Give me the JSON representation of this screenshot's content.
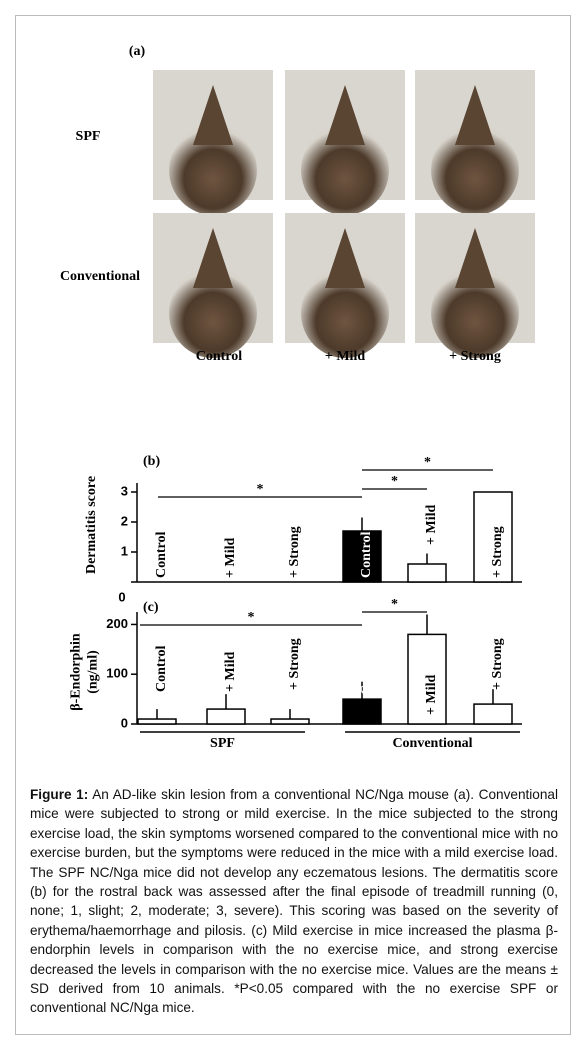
{
  "panel_a": {
    "label": "(a)",
    "rows": [
      "SPF",
      "Conventional"
    ],
    "columns": [
      "Control",
      "+ Mild",
      "+ Strong"
    ]
  },
  "chart_data": [
    {
      "type": "bar",
      "label": "(b)",
      "ylabel": [
        "Dermatitis score"
      ],
      "categories": [
        "Control",
        "+ Mild",
        "+ Strong",
        "Control",
        "+ Mild",
        "+ Strong"
      ],
      "values": [
        0,
        0,
        0,
        1.7,
        0.6,
        3.0
      ],
      "errors": [
        0,
        0,
        0,
        0.45,
        0.35,
        0
      ],
      "colors": [
        "#ffffff",
        "#ffffff",
        "#ffffff",
        "#000000",
        "#ffffff",
        "#ffffff"
      ],
      "ylim": [
        0,
        3.3
      ],
      "yticks": [
        0,
        1,
        2,
        3
      ],
      "annotations": [
        "*",
        "*",
        "*"
      ]
    },
    {
      "type": "bar",
      "label": "(c)",
      "ylabel": [
        "β-Endorphin",
        "(ng/ml)"
      ],
      "categories": [
        "Control",
        "+ Mild",
        "+ Strong",
        "Control",
        "+ Mild",
        "+ Strong"
      ],
      "values": [
        10,
        30,
        10,
        50,
        180,
        40
      ],
      "errors": [
        20,
        30,
        20,
        35,
        40,
        30
      ],
      "colors": [
        "#ffffff",
        "#ffffff",
        "#ffffff",
        "#000000",
        "#ffffff",
        "#ffffff"
      ],
      "ylim": [
        0,
        225
      ],
      "yticks": [
        0,
        100,
        200
      ],
      "annotations": [
        "*",
        "*"
      ],
      "groups": [
        "SPF",
        "Conventional"
      ]
    }
  ],
  "caption": {
    "label": "Figure 1:",
    "text": "An AD-like skin lesion from a conventional NC/Nga mouse (a). Conventional mice were subjected to strong or mild exercise. In the mice subjected to the strong exercise load, the skin symptoms worsened compared to the conventional mice with no exercise burden, but the symptoms were reduced in the mice with a mild exercise load. The SPF NC/Nga mice did not develop any eczematous lesions. The dermatitis score (b) for the rostral back was assessed after the final episode of treadmill running (0, none; 1, slight; 2, moderate; 3, severe). This scoring was based on the severity of erythema/haemorrhage and pilosis. (c) Mild exercise in mice increased the plasma β-endorphin levels in comparison with the no exercise mice, and strong exercise decreased the levels in comparison with the no exercise mice. Values are the means ± SD derived from 10 animals. *P<0.05 compared with the no exercise SPF or conventional NC/Nga mice."
  }
}
